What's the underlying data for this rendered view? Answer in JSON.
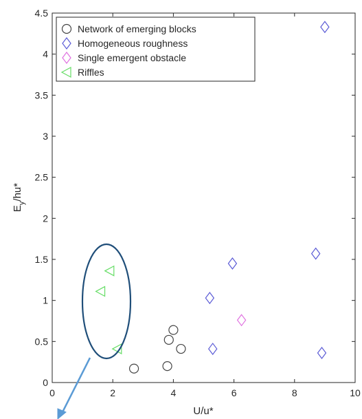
{
  "chart_data": {
    "type": "scatter",
    "xlabel": "U/u*",
    "ylabel_main": "E",
    "ylabel_sub": "y",
    "ylabel_rest": "/hu*",
    "xlim": [
      0,
      10
    ],
    "ylim": [
      0,
      4.5
    ],
    "xticks": [
      "0",
      "2",
      "4",
      "6",
      "8",
      "10"
    ],
    "yticks": [
      "0",
      "0.5",
      "1",
      "1.5",
      "2",
      "2.5",
      "3",
      "3.5",
      "4",
      "4.5"
    ],
    "grid": false,
    "legend_position": "top-left",
    "series": [
      {
        "name": "Network of emerging blocks",
        "marker": "circle",
        "color": "#444444",
        "points": [
          [
            2.7,
            0.17
          ],
          [
            3.8,
            0.2
          ],
          [
            3.85,
            0.52
          ],
          [
            4.0,
            0.64
          ],
          [
            4.25,
            0.41
          ]
        ]
      },
      {
        "name": "Homogeneous roughness",
        "marker": "diamond",
        "color": "#5b5bd6",
        "points": [
          [
            9.0,
            4.33
          ],
          [
            5.2,
            1.03
          ],
          [
            5.3,
            0.41
          ],
          [
            5.95,
            1.45
          ],
          [
            8.7,
            1.57
          ],
          [
            8.9,
            0.36
          ]
        ]
      },
      {
        "name": "Single emergent obstacle",
        "marker": "diamond",
        "color": "#e070e0",
        "points": [
          [
            6.25,
            0.76
          ]
        ]
      },
      {
        "name": "Riffles",
        "marker": "triangle-left",
        "color": "#66dd66",
        "points": [
          [
            1.9,
            1.36
          ],
          [
            1.6,
            1.11
          ],
          [
            2.15,
            0.41
          ]
        ]
      }
    ],
    "annotations": [
      {
        "type": "ellipse",
        "color": "#1f4e79",
        "around": "Riffles"
      },
      {
        "type": "arrow",
        "color": "#5b9bd5",
        "direction": "down-left"
      }
    ]
  }
}
